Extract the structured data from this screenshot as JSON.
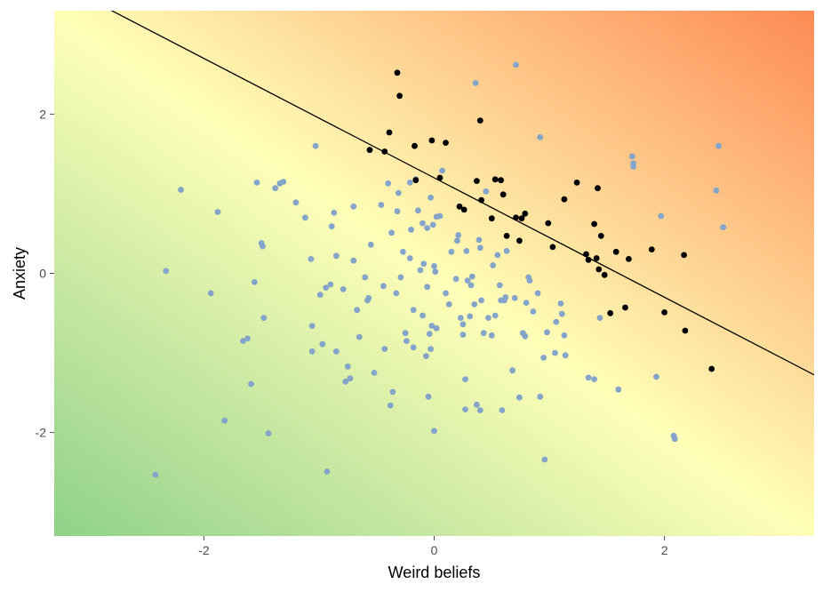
{
  "chart_data": {
    "type": "scatter",
    "title": "",
    "xlabel": "Weird beliefs",
    "ylabel": "Anxiety",
    "xlim": [
      -3.3,
      3.3
    ],
    "ylim": [
      -3.3,
      3.3
    ],
    "x_ticks": [
      -2,
      0,
      2
    ],
    "y_ticks": [
      -2,
      0,
      2
    ],
    "x_tick_labels": [
      "-2",
      "0",
      "2"
    ],
    "y_tick_labels": [
      "-2",
      "0",
      "2"
    ],
    "grid": false,
    "legend": "none",
    "background": "diagonal gradient from green (bottom-left) through light yellow to orange (top-right)",
    "colors": {
      "gradient_low": "#8fd18a",
      "gradient_mid": "#ffffb8",
      "gradient_high": "#fd8a55",
      "points_below": "#84a5c9",
      "points_above": "#000000",
      "line": "#000000",
      "tick": "#4d4d4d",
      "text": "#000000"
    },
    "reference_line": {
      "intercept": 1.2,
      "slope": -0.75
    },
    "series": [
      {
        "color": "#84a5c9",
        "points": [
          [
            -2.42,
            -2.53
          ],
          [
            -2.33,
            0.03
          ],
          [
            -2.2,
            1.05
          ],
          [
            -1.94,
            -0.25
          ],
          [
            -1.88,
            0.77
          ],
          [
            -1.82,
            -1.85
          ],
          [
            -1.66,
            -0.85
          ],
          [
            -1.62,
            -0.82
          ],
          [
            -1.59,
            -1.39
          ],
          [
            -1.56,
            -0.11
          ],
          [
            -1.54,
            1.14
          ],
          [
            -1.5,
            0.38
          ],
          [
            -1.49,
            0.34
          ],
          [
            -1.48,
            -0.56
          ],
          [
            -1.44,
            -2.01
          ],
          [
            -1.38,
            1.07
          ],
          [
            -1.34,
            1.13
          ],
          [
            -1.31,
            1.15
          ],
          [
            -1.2,
            0.89
          ],
          [
            -1.12,
            0.7
          ],
          [
            -1.07,
            0.18
          ],
          [
            -1.06,
            -0.98
          ],
          [
            -1.06,
            -0.66
          ],
          [
            -1.03,
            1.6
          ],
          [
            -0.99,
            -0.27
          ],
          [
            -0.97,
            -0.89
          ],
          [
            -0.94,
            -0.18
          ],
          [
            -0.93,
            -2.49
          ],
          [
            -0.9,
            -0.14
          ],
          [
            -0.89,
            0.59
          ],
          [
            -0.87,
            0.76
          ],
          [
            -0.85,
            -0.98
          ],
          [
            -0.85,
            0.22
          ],
          [
            -0.79,
            -0.2
          ],
          [
            -0.77,
            -1.36
          ],
          [
            -0.75,
            -1.17
          ],
          [
            -0.73,
            -1.32
          ],
          [
            -0.7,
            0.84
          ],
          [
            -0.7,
            0.16
          ],
          [
            -0.67,
            -0.46
          ],
          [
            -0.65,
            -0.8
          ],
          [
            -0.6,
            -0.05
          ],
          [
            -0.58,
            -0.34
          ],
          [
            -0.57,
            -0.31
          ],
          [
            -0.55,
            0.36
          ],
          [
            -0.52,
            -1.25
          ],
          [
            -0.46,
            0.86
          ],
          [
            -0.44,
            -0.16
          ],
          [
            -0.43,
            -0.95
          ],
          [
            -0.4,
            1.13
          ],
          [
            -0.38,
            -1.66
          ],
          [
            -0.36,
            -1.49
          ],
          [
            -0.37,
            0.51
          ],
          [
            -0.33,
            -0.25
          ],
          [
            -0.32,
            0.78
          ],
          [
            -0.31,
            1.01
          ],
          [
            -0.29,
            -0.05
          ],
          [
            -0.27,
            0.27
          ],
          [
            -0.25,
            -0.75
          ],
          [
            -0.24,
            -0.85
          ],
          [
            -0.21,
            1.14
          ],
          [
            -0.21,
            0.19
          ],
          [
            -0.2,
            0.55
          ],
          [
            -0.18,
            -0.93
          ],
          [
            -0.18,
            -0.46
          ],
          [
            -0.16,
            1.18
          ],
          [
            -0.14,
            0.79
          ],
          [
            -0.12,
            0.04
          ],
          [
            -0.1,
            0.63
          ],
          [
            -0.1,
            -0.53
          ],
          [
            -0.09,
            0.12
          ],
          [
            -0.07,
            -1.04
          ],
          [
            -0.06,
            -0.17
          ],
          [
            -0.06,
            0.57
          ],
          [
            -0.05,
            -1.55
          ],
          [
            -0.04,
            -0.76
          ],
          [
            -0.03,
            0.95
          ],
          [
            -0.03,
            -0.95
          ],
          [
            -0.02,
            -0.66
          ],
          [
            -0.01,
            0.61
          ],
          [
            0,
            0.09
          ],
          [
            0,
            -1.98
          ],
          [
            0.01,
            0.02
          ],
          [
            0.02,
            -0.69
          ],
          [
            0.02,
            0.71
          ],
          [
            0.05,
            0.72
          ],
          [
            0.07,
            1.29
          ],
          [
            0.1,
            -0.25
          ],
          [
            0.13,
            -0.39
          ],
          [
            0.15,
            0.27
          ],
          [
            0.19,
            -0.07
          ],
          [
            0.2,
            0.41
          ],
          [
            0.21,
            0.48
          ],
          [
            0.23,
            -0.56
          ],
          [
            0.25,
            -0.64
          ],
          [
            0.25,
            -0.77
          ],
          [
            0.27,
            -1.33
          ],
          [
            0.27,
            -1.71
          ],
          [
            0.28,
            0.28
          ],
          [
            0.29,
            -0.09
          ],
          [
            0.31,
            -0.54
          ],
          [
            0.32,
            -0.15
          ],
          [
            0.33,
            -0.04
          ],
          [
            0.35,
            -0.39
          ],
          [
            0.36,
            2.39
          ],
          [
            0.37,
            -1.65
          ],
          [
            0.39,
            0.42
          ],
          [
            0.4,
            0.32
          ],
          [
            0.4,
            -1.72
          ],
          [
            0.41,
            -0.34
          ],
          [
            0.43,
            -0.75
          ],
          [
            0.45,
            1.03
          ],
          [
            0.47,
            -0.56
          ],
          [
            0.5,
            -0.78
          ],
          [
            0.51,
            0.1
          ],
          [
            0.53,
            -0.53
          ],
          [
            0.55,
            0.23
          ],
          [
            0.57,
            -0.15
          ],
          [
            0.58,
            -0.34
          ],
          [
            0.59,
            -1.72
          ],
          [
            0.61,
            -0.34
          ],
          [
            0.62,
            -0.3
          ],
          [
            0.63,
            0.28
          ],
          [
            0.68,
            -1.22
          ],
          [
            0.7,
            -0.31
          ],
          [
            0.71,
            2.62
          ],
          [
            0.74,
            -1.56
          ],
          [
            0.77,
            -0.75
          ],
          [
            0.79,
            -0.79
          ],
          [
            0.8,
            -0.37
          ],
          [
            0.82,
            -0.05
          ],
          [
            0.83,
            -0.09
          ],
          [
            0.86,
            -0.48
          ],
          [
            0.9,
            -0.25
          ],
          [
            0.92,
            1.71
          ],
          [
            0.92,
            -1.55
          ],
          [
            0.95,
            -1.06
          ],
          [
            0.96,
            -2.34
          ],
          [
            0.98,
            -0.74
          ],
          [
            1.05,
            -1.0
          ],
          [
            1.06,
            -0.61
          ],
          [
            1.1,
            -0.38
          ],
          [
            1.11,
            -0.51
          ],
          [
            1.13,
            -0.78
          ],
          [
            1.14,
            -1.03
          ],
          [
            1.34,
            -1.31
          ],
          [
            1.39,
            -1.33
          ],
          [
            1.44,
            -0.56
          ],
          [
            1.6,
            -1.46
          ],
          [
            1.72,
            1.47
          ],
          [
            1.73,
            1.38
          ],
          [
            1.73,
            1.34
          ],
          [
            1.93,
            -1.3
          ],
          [
            1.97,
            0.72
          ],
          [
            2.08,
            -2.04
          ],
          [
            2.09,
            -2.08
          ],
          [
            2.45,
            1.04
          ],
          [
            2.47,
            1.6
          ],
          [
            2.51,
            0.58
          ]
        ]
      },
      {
        "color": "#000000",
        "points": [
          [
            -0.56,
            1.55
          ],
          [
            -0.43,
            1.53
          ],
          [
            -0.39,
            1.77
          ],
          [
            -0.32,
            2.52
          ],
          [
            -0.3,
            2.23
          ],
          [
            -0.17,
            1.6
          ],
          [
            -0.16,
            1.17
          ],
          [
            -0.02,
            1.67
          ],
          [
            0.05,
            1.2
          ],
          [
            0.1,
            1.64
          ],
          [
            0.22,
            0.84
          ],
          [
            0.26,
            0.8
          ],
          [
            0.37,
            1.16
          ],
          [
            0.4,
            1.92
          ],
          [
            0.41,
            0.92
          ],
          [
            0.5,
            0.69
          ],
          [
            0.53,
            1.18
          ],
          [
            0.58,
            1.17
          ],
          [
            0.6,
            0.99
          ],
          [
            0.63,
            0.47
          ],
          [
            0.71,
            0.7
          ],
          [
            0.74,
            0.41
          ],
          [
            0.76,
            0.69
          ],
          [
            0.79,
            0.75
          ],
          [
            0.99,
            0.63
          ],
          [
            1.03,
            0.33
          ],
          [
            1.13,
            0.93
          ],
          [
            1.24,
            1.14
          ],
          [
            1.32,
            0.24
          ],
          [
            1.34,
            0.17
          ],
          [
            1.39,
            0.62
          ],
          [
            1.41,
            0.19
          ],
          [
            1.43,
            0.05
          ],
          [
            1.45,
            0.47
          ],
          [
            1.48,
            -0.02
          ],
          [
            1.53,
            -0.5
          ],
          [
            1.58,
            0.27
          ],
          [
            1.66,
            -0.43
          ],
          [
            1.69,
            0.18
          ],
          [
            1.89,
            0.3
          ],
          [
            2.0,
            -0.49
          ],
          [
            2.17,
            0.23
          ],
          [
            2.18,
            -0.72
          ],
          [
            2.41,
            -1.2
          ],
          [
            1.42,
            1.07
          ]
        ]
      }
    ]
  }
}
